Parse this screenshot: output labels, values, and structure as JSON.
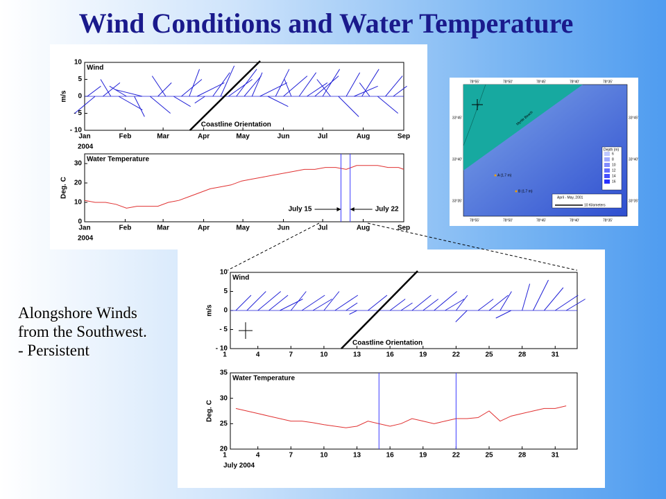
{
  "title": "Wind Conditions and Water Temperature",
  "side_text": [
    "Alongshore Winds from the Southwest.",
    "- Persistent"
  ],
  "map": {
    "labels": [
      "Myrtle Beach",
      "Depth (m)",
      "A (1.7 m)",
      "B (1.7 m)",
      "April - May, 2001",
      "10 Kilometers"
    ],
    "depth_levels": [
      "6",
      "8",
      "10",
      "12",
      "14",
      "16"
    ],
    "longitudes": [
      "78°55'",
      "78°50'",
      "78°45'",
      "78°40'",
      "78°35'"
    ],
    "latitudes": [
      "33°45'",
      "33°40'",
      "33°35'"
    ]
  },
  "chart_data": [
    {
      "type": "stick",
      "subtitle": "Wind",
      "ylabel": "m/s",
      "xlabel": "2004",
      "annotation": "Coastline Orientation",
      "color": "#1f1fd6",
      "xlim": [
        1,
        245
      ],
      "xticks": [
        {
          "value": 1,
          "label": "Jan"
        },
        {
          "value": 32,
          "label": "Feb"
        },
        {
          "value": 61,
          "label": "Mar"
        },
        {
          "value": 92,
          "label": "Apr"
        },
        {
          "value": 122,
          "label": "May"
        },
        {
          "value": 153,
          "label": "Jun"
        },
        {
          "value": 183,
          "label": "Jul"
        },
        {
          "value": 214,
          "label": "Aug"
        },
        {
          "value": 245,
          "label": "Sep"
        }
      ],
      "ylim": [
        -10,
        10
      ],
      "yticks": [
        10,
        5,
        0,
        {
          "value": -5,
          "label": "- 5"
        },
        {
          "value": -10,
          "label": "- 10"
        }
      ],
      "x": [
        3,
        9,
        15,
        21,
        27,
        33,
        39,
        45,
        51,
        57,
        63,
        69,
        75,
        81,
        87,
        93,
        99,
        105,
        111,
        117,
        123,
        129,
        135,
        141,
        147,
        153,
        159,
        165,
        171,
        177,
        183,
        189,
        195,
        201,
        207,
        213,
        219,
        225,
        231,
        237
      ],
      "u": [
        4,
        -6,
        5,
        -3,
        7,
        -5,
        3,
        -8,
        6,
        4,
        -4,
        5,
        6,
        3,
        8,
        -3,
        5,
        4,
        7,
        6,
        5,
        3,
        8,
        6,
        4,
        7,
        -2,
        5,
        6,
        7,
        5,
        -4,
        6,
        4,
        7,
        5,
        -3,
        6,
        5,
        4
      ],
      "v": [
        3,
        -5,
        4,
        5,
        -4,
        3,
        -6,
        2,
        -5,
        4,
        6,
        -3,
        5,
        8,
        4,
        -2,
        7,
        9,
        5,
        8,
        6,
        7,
        4,
        -3,
        8,
        6,
        5,
        7,
        4,
        6,
        8,
        5,
        -6,
        7,
        3,
        8,
        4,
        -5,
        6,
        3
      ]
    },
    {
      "type": "line",
      "subtitle": "Water Temperature",
      "ylabel": "Deg. C",
      "xlabel": "2004",
      "color": "#e03030",
      "xlim": [
        1,
        245
      ],
      "xticks": [
        {
          "value": 1,
          "label": "Jan"
        },
        {
          "value": 32,
          "label": "Feb"
        },
        {
          "value": 61,
          "label": "Mar"
        },
        {
          "value": 92,
          "label": "Apr"
        },
        {
          "value": 122,
          "label": "May"
        },
        {
          "value": 153,
          "label": "Jun"
        },
        {
          "value": 183,
          "label": "Jul"
        },
        {
          "value": 214,
          "label": "Aug"
        },
        {
          "value": 245,
          "label": "Sep"
        }
      ],
      "ylim": [
        0,
        35
      ],
      "yticks": [
        0,
        10,
        20,
        30
      ],
      "vlines": [
        197,
        204
      ],
      "vline_color": "#3a3aff",
      "annotations": [
        "July 15",
        "July 22"
      ],
      "x": [
        1,
        9,
        17,
        25,
        33,
        41,
        49,
        57,
        65,
        73,
        81,
        89,
        97,
        105,
        113,
        121,
        129,
        137,
        145,
        153,
        161,
        169,
        177,
        185,
        193,
        201,
        209,
        217,
        225,
        233,
        241,
        245
      ],
      "values": [
        11,
        10,
        10,
        9,
        7,
        8,
        8,
        8,
        10,
        11,
        13,
        15,
        17,
        18,
        19,
        21,
        22,
        23,
        24,
        25,
        26,
        27,
        27,
        28,
        28,
        27,
        29,
        29,
        29,
        28,
        28,
        27
      ]
    },
    {
      "type": "stick",
      "subtitle": "Wind",
      "ylabel": "m/s",
      "annotation": "Coastline Orientation",
      "color": "#1f1fd6",
      "xlim": [
        1.5,
        33
      ],
      "xticks": [
        1,
        4,
        7,
        10,
        13,
        16,
        19,
        22,
        25,
        28,
        31
      ],
      "ylim": [
        -10,
        10
      ],
      "yticks": [
        10,
        5,
        0,
        {
          "value": -5,
          "label": "- 5"
        },
        {
          "value": -10,
          "label": "- 10"
        }
      ],
      "x": [
        2,
        3,
        4,
        5,
        6,
        7,
        8,
        9,
        10,
        11,
        12,
        13,
        14,
        15,
        16,
        17,
        18,
        19,
        20,
        21,
        22,
        23,
        24,
        25,
        26,
        27,
        28,
        29,
        30,
        31,
        32
      ],
      "u": [
        4,
        5,
        6,
        5,
        6,
        4,
        6,
        5,
        4,
        6,
        3,
        -2,
        5,
        6,
        4,
        3,
        5,
        4,
        6,
        5,
        3,
        -3,
        4,
        5,
        3,
        -4,
        2,
        4,
        5,
        6,
        5
      ],
      "v": [
        4,
        5,
        5,
        4,
        3,
        5,
        4,
        3,
        5,
        4,
        2,
        -1,
        4,
        6,
        3,
        2,
        4,
        3,
        5,
        3,
        4,
        -3,
        3,
        4,
        5,
        -2,
        7,
        8,
        6,
        4,
        3
      ]
    },
    {
      "type": "line",
      "subtitle": "Water Temperature",
      "ylabel": "Deg. C",
      "xlabel": "July 2004",
      "color": "#e03030",
      "xlim": [
        1.5,
        33
      ],
      "xticks": [
        1,
        4,
        7,
        10,
        13,
        16,
        19,
        22,
        25,
        28,
        31
      ],
      "ylim": [
        20,
        35
      ],
      "yticks": [
        20,
        25,
        30,
        35
      ],
      "vlines": [
        15,
        22
      ],
      "vline_color": "#3a3aff",
      "x": [
        2,
        3,
        4,
        5,
        6,
        7,
        8,
        9,
        10,
        11,
        12,
        13,
        14,
        15,
        16,
        17,
        18,
        19,
        20,
        21,
        22,
        23,
        24,
        25,
        26,
        27,
        28,
        29,
        30,
        31,
        32
      ],
      "values": [
        28,
        27.5,
        27,
        26.5,
        26,
        25.5,
        25.5,
        25.2,
        24.8,
        24.5,
        24.2,
        24.5,
        25.5,
        25,
        24.5,
        25,
        26,
        25.5,
        25,
        25.5,
        26,
        26,
        26.2,
        27.5,
        25.5,
        26.5,
        27,
        27.5,
        28,
        28,
        28.5
      ]
    }
  ]
}
